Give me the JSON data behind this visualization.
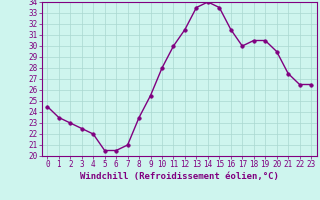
{
  "x": [
    0,
    1,
    2,
    3,
    4,
    5,
    6,
    7,
    8,
    9,
    10,
    11,
    12,
    13,
    14,
    15,
    16,
    17,
    18,
    19,
    20,
    21,
    22,
    23
  ],
  "y": [
    24.5,
    23.5,
    23.0,
    22.5,
    22.0,
    20.5,
    20.5,
    21.0,
    23.5,
    25.5,
    28.0,
    30.0,
    31.5,
    33.5,
    34.0,
    33.5,
    31.5,
    30.0,
    30.5,
    30.5,
    29.5,
    27.5,
    26.5,
    26.5
  ],
  "line_color": "#800080",
  "marker_color": "#800080",
  "bg_color": "#cef5ee",
  "grid_color": "#aad8d0",
  "xlabel": "Windchill (Refroidissement éolien,°C)",
  "ylim": [
    20,
    34
  ],
  "xlim_min": -0.5,
  "xlim_max": 23.5,
  "yticks": [
    20,
    21,
    22,
    23,
    24,
    25,
    26,
    27,
    28,
    29,
    30,
    31,
    32,
    33,
    34
  ],
  "xticks": [
    0,
    1,
    2,
    3,
    4,
    5,
    6,
    7,
    8,
    9,
    10,
    11,
    12,
    13,
    14,
    15,
    16,
    17,
    18,
    19,
    20,
    21,
    22,
    23
  ],
  "axis_color": "#800080",
  "tick_color": "#800080",
  "xlabel_color": "#800080",
  "xlabel_fontsize": 6.5,
  "tick_fontsize": 5.5,
  "marker_size": 2.5,
  "line_width": 1.0
}
